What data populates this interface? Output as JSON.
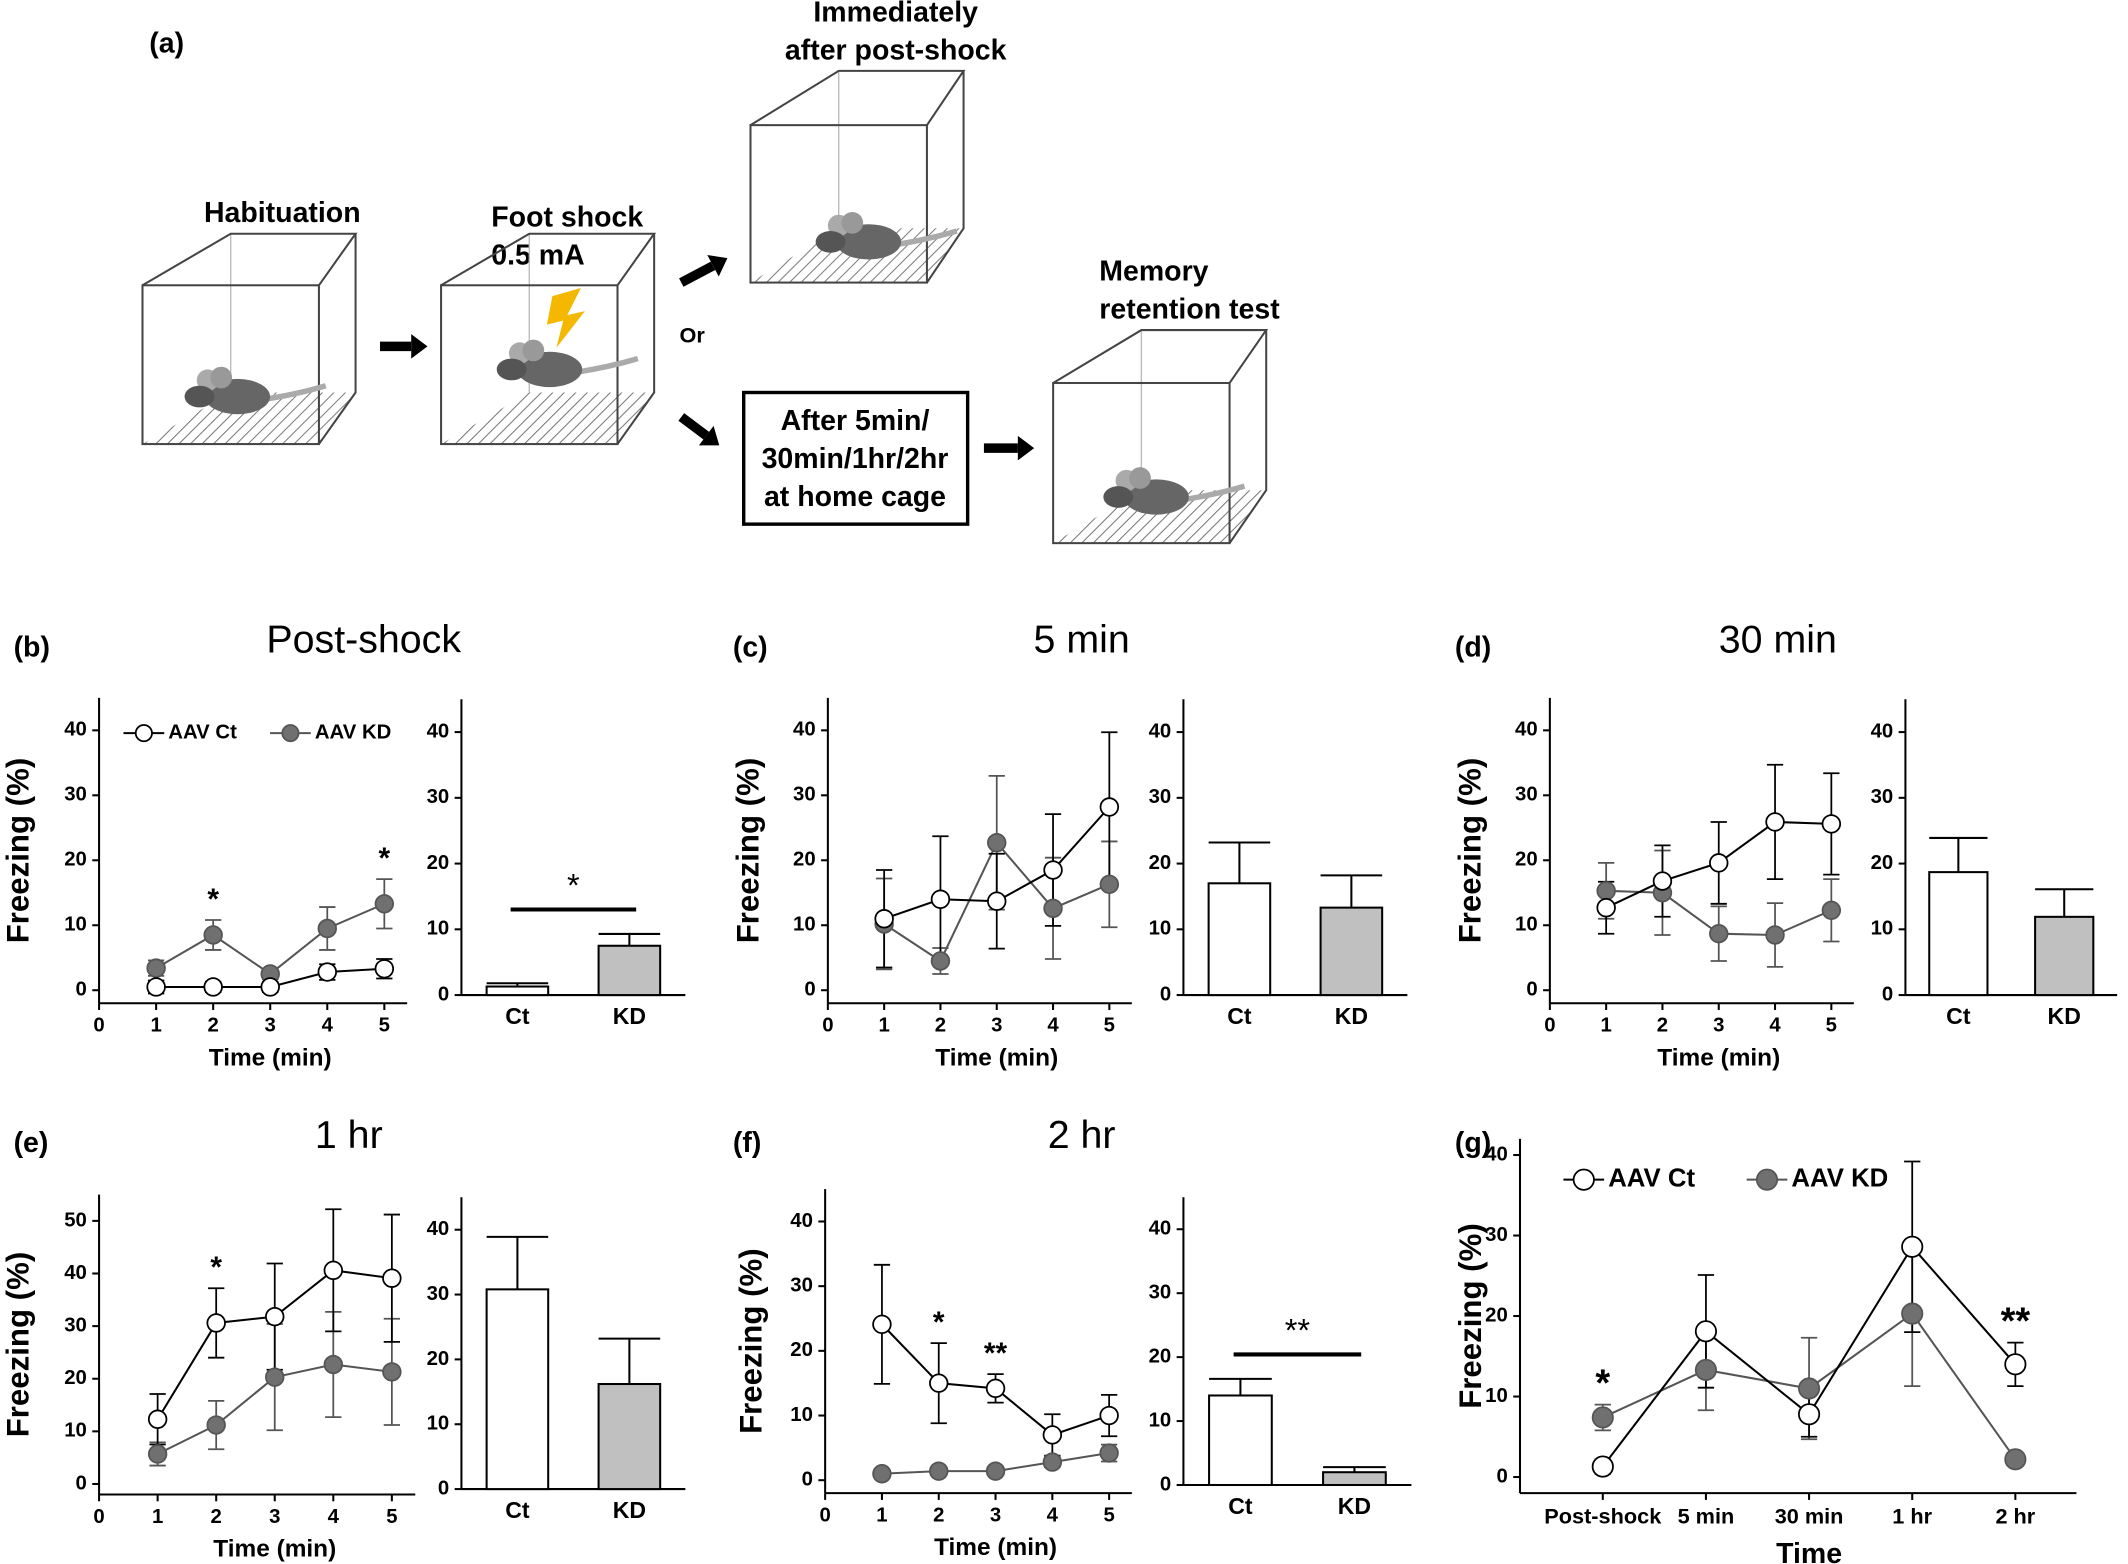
{
  "schematic": {
    "panel": "(a)",
    "habituation": "Habituation",
    "foot_shock": [
      "Foot shock",
      "0.5 mA"
    ],
    "immediately": [
      "Immediately",
      "after post-shock"
    ],
    "or": "Or",
    "memory": [
      "Memory",
      "retention test"
    ],
    "home_cage": [
      "After 5min/",
      "30min/1hr/2hr",
      "at home cage"
    ]
  },
  "chart_data": [
    {
      "type": "line",
      "panel": "(b)",
      "title": "Post-shock",
      "xlabel": "Time (min)",
      "ylabel": "Freezing (%)",
      "x": [
        1,
        2,
        3,
        4,
        5
      ],
      "xlim": [
        0,
        5.4
      ],
      "xticks": [
        0,
        1,
        2,
        3,
        4,
        5
      ],
      "ylim": [
        -2,
        45
      ],
      "yticks": [
        0,
        10,
        20,
        30,
        40
      ],
      "legend": "top-left",
      "series": [
        {
          "name": "AAV Ct",
          "color": "#ffffff",
          "values": [
            0.5,
            0.5,
            0.5,
            2.8,
            3.3
          ],
          "errors": [
            1,
            0.8,
            0.8,
            1.2,
            1.5
          ]
        },
        {
          "name": "AAV KD",
          "color": "#707070",
          "values": [
            3.4,
            8.5,
            2.5,
            9.5,
            13.3
          ],
          "errors": [
            1.2,
            2.3,
            0.8,
            3.3,
            3.8
          ]
        }
      ],
      "annotations": [
        {
          "text": "*",
          "x": 2
        },
        {
          "text": "*",
          "x": 5
        }
      ]
    },
    {
      "type": "bar",
      "categories": [
        "Ct",
        "KD"
      ],
      "values": [
        1.3,
        7.5
      ],
      "errors": [
        0.5,
        1.8
      ],
      "colors": [
        "#ffffff",
        "#c0c0c0"
      ],
      "ylim": [
        0,
        45
      ],
      "yticks": [
        0,
        10,
        20,
        30,
        40
      ],
      "significance": "*"
    },
    {
      "type": "line",
      "panel": "(c)",
      "title": "5 min",
      "xlabel": "Time (min)",
      "ylabel": "Freezing (%)",
      "x": [
        1,
        2,
        3,
        4,
        5
      ],
      "xlim": [
        0,
        5.4
      ],
      "xticks": [
        0,
        1,
        2,
        3,
        4,
        5
      ],
      "ylim": [
        -2,
        45
      ],
      "yticks": [
        0,
        10,
        20,
        30,
        40
      ],
      "series": [
        {
          "color": "#ffffff",
          "values": [
            11,
            14,
            13.7,
            18.5,
            28.2
          ],
          "errors": [
            7.5,
            9.7,
            7.3,
            8.6,
            11.5
          ]
        },
        {
          "color": "#707070",
          "values": [
            10.2,
            4.5,
            22.7,
            12.6,
            16.3
          ],
          "errors": [
            7,
            2,
            10.3,
            7.8,
            6.6
          ]
        }
      ]
    },
    {
      "type": "bar",
      "categories": [
        "Ct",
        "KD"
      ],
      "values": [
        17,
        13.3
      ],
      "errors": [
        6.2,
        4.9
      ],
      "colors": [
        "#ffffff",
        "#c0c0c0"
      ],
      "ylim": [
        0,
        45
      ],
      "yticks": [
        0,
        10,
        20,
        30,
        40
      ]
    },
    {
      "type": "line",
      "panel": "(d)",
      "title": "30 min",
      "xlabel": "Time (min)",
      "ylabel": "Freezing (%)",
      "x": [
        1,
        2,
        3,
        4,
        5
      ],
      "xlim": [
        0,
        5.4
      ],
      "xticks": [
        0,
        1,
        2,
        3,
        4,
        5
      ],
      "ylim": [
        -2,
        45
      ],
      "yticks": [
        0,
        10,
        20,
        30,
        40
      ],
      "series": [
        {
          "color": "#ffffff",
          "values": [
            12.7,
            16.8,
            19.6,
            25.9,
            25.6
          ],
          "errors": [
            4,
            5.5,
            6.3,
            8.8,
            7.8
          ]
        },
        {
          "color": "#707070",
          "values": [
            15.3,
            15,
            8.7,
            8.5,
            12.3
          ],
          "errors": [
            4.3,
            6.5,
            4.2,
            4.9,
            4.8
          ]
        }
      ]
    },
    {
      "type": "bar",
      "categories": [
        "Ct",
        "KD"
      ],
      "values": [
        18.7,
        11.9
      ],
      "errors": [
        5.2,
        4.2
      ],
      "colors": [
        "#ffffff",
        "#c0c0c0"
      ],
      "ylim": [
        0,
        45
      ],
      "yticks": [
        0,
        10,
        20,
        30,
        40
      ]
    },
    {
      "type": "line",
      "panel": "(e)",
      "title": "1 hr",
      "xlabel": "Time (min)",
      "ylabel": "Freezing (%)",
      "x": [
        1,
        2,
        3,
        4,
        5
      ],
      "xlim": [
        0,
        5.4
      ],
      "xticks": [
        0,
        1,
        2,
        3,
        4,
        5
      ],
      "ylim": [
        -2,
        55
      ],
      "yticks": [
        0,
        10,
        20,
        30,
        40,
        50
      ],
      "series": [
        {
          "color": "#ffffff",
          "values": [
            12.3,
            30.6,
            31.8,
            40.6,
            39.1
          ],
          "errors": [
            4.8,
            6.6,
            10.1,
            11.6,
            12.1
          ]
        },
        {
          "color": "#707070",
          "values": [
            5.7,
            11.2,
            20.3,
            22.7,
            21.3
          ],
          "errors": [
            2.2,
            4.6,
            10.1,
            10,
            10.1
          ]
        }
      ],
      "annotations": [
        {
          "text": "*",
          "x": 2
        }
      ]
    },
    {
      "type": "bar",
      "categories": [
        "Ct",
        "KD"
      ],
      "values": [
        30.8,
        16.2
      ],
      "errors": [
        8.1,
        7
      ],
      "colors": [
        "#ffffff",
        "#c0c0c0"
      ],
      "ylim": [
        0,
        45
      ],
      "yticks": [
        0,
        10,
        20,
        30,
        40
      ]
    },
    {
      "type": "line",
      "panel": "(f)",
      "title": "2 hr",
      "xlabel": "Time (min)",
      "ylabel": "Freezing (%)",
      "x": [
        1,
        2,
        3,
        4,
        5
      ],
      "xlim": [
        0,
        5.4
      ],
      "xticks": [
        0,
        1,
        2,
        3,
        4,
        5
      ],
      "ylim": [
        -2,
        45
      ],
      "yticks": [
        0,
        10,
        20,
        30,
        40
      ],
      "series": [
        {
          "color": "#ffffff",
          "values": [
            24.1,
            15,
            14.2,
            7,
            10
          ],
          "errors": [
            9.2,
            6.2,
            2.2,
            3.2,
            3.2
          ]
        },
        {
          "color": "#707070",
          "values": [
            1,
            1.4,
            1.4,
            2.8,
            4.2
          ],
          "errors": [
            0.5,
            0.5,
            0.5,
            0.8,
            1.3
          ]
        }
      ],
      "annotations": [
        {
          "text": "*",
          "x": 2
        },
        {
          "text": "**",
          "x": 3
        }
      ]
    },
    {
      "type": "bar",
      "categories": [
        "Ct",
        "KD"
      ],
      "values": [
        14,
        2
      ],
      "errors": [
        2.6,
        0.8
      ],
      "colors": [
        "#ffffff",
        "#c0c0c0"
      ],
      "ylim": [
        0,
        45
      ],
      "yticks": [
        0,
        10,
        20,
        30,
        40
      ],
      "significance": "**"
    },
    {
      "type": "line",
      "panel": "(g)",
      "xlabel": "Time",
      "ylabel": "Freezing (%)",
      "categories": [
        "Post-shock",
        "5 min",
        "30 min",
        "1 hr",
        "2 hr"
      ],
      "ylim": [
        -2,
        42
      ],
      "yticks": [
        0,
        10,
        20,
        30,
        40
      ],
      "legend": "top-left",
      "series": [
        {
          "name": "AAV Ct",
          "color": "#ffffff",
          "values": [
            1.3,
            18.1,
            7.8,
            28.6,
            14
          ],
          "errors": [
            0.9,
            7,
            2.8,
            10.6,
            2.7
          ]
        },
        {
          "name": "AAV KD",
          "color": "#707070",
          "values": [
            7.4,
            13.3,
            11,
            20.3,
            2.2
          ],
          "errors": [
            1.6,
            5,
            6.3,
            9,
            0.5
          ]
        }
      ],
      "annotations": [
        {
          "text": "*",
          "x": "Post-shock"
        },
        {
          "text": "**",
          "x": "2 hr"
        }
      ]
    }
  ]
}
